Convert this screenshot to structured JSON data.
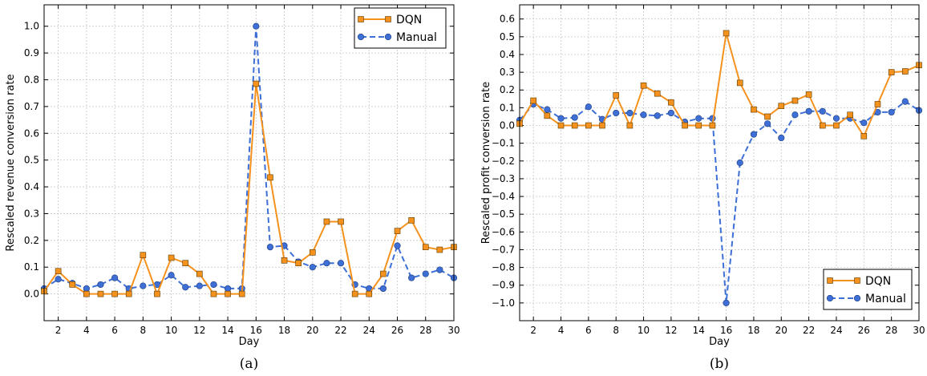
{
  "chart_data": [
    {
      "type": "line",
      "caption": "(a)",
      "xlabel": "Day",
      "ylabel": "Rescaled revenue conversion rate",
      "xlim": [
        1,
        30
      ],
      "ylim": [
        -0.1,
        1.08
      ],
      "xticks": [
        2,
        4,
        6,
        8,
        10,
        12,
        14,
        16,
        18,
        20,
        22,
        24,
        26,
        28,
        30
      ],
      "yticks": [
        0.0,
        0.1,
        0.2,
        0.3,
        0.4,
        0.5,
        0.6,
        0.7,
        0.8,
        0.9,
        1.0
      ],
      "ytick_labels": [
        "0.0",
        "0.1",
        "0.2",
        "0.3",
        "0.4",
        "0.5",
        "0.6",
        "0.7",
        "0.8",
        "0.9",
        "1.0"
      ],
      "grid": true,
      "legend_position": "top-right",
      "x": [
        1,
        2,
        3,
        4,
        5,
        6,
        7,
        8,
        9,
        10,
        11,
        12,
        13,
        14,
        15,
        16,
        17,
        18,
        19,
        20,
        21,
        22,
        23,
        24,
        25,
        26,
        27,
        28,
        29,
        30
      ],
      "series": [
        {
          "name": "DQN",
          "color": "#f5921e",
          "marker": "square",
          "line": "solid",
          "values": [
            0.01,
            0.085,
            0.035,
            0.0,
            0.0,
            0.0,
            0.0,
            0.145,
            0.0,
            0.135,
            0.115,
            0.075,
            0.0,
            0.0,
            0.0,
            0.785,
            0.435,
            0.125,
            0.115,
            0.155,
            0.27,
            0.27,
            0.0,
            0.0,
            0.075,
            0.235,
            0.275,
            0.175,
            0.165,
            0.175
          ]
        },
        {
          "name": "Manual",
          "color": "#3d6fd6",
          "marker": "circle",
          "line": "dashed",
          "values": [
            0.02,
            0.055,
            0.04,
            0.02,
            0.035,
            0.06,
            0.02,
            0.03,
            0.035,
            0.07,
            0.025,
            0.03,
            0.035,
            0.02,
            0.02,
            1.0,
            0.175,
            0.18,
            0.12,
            0.1,
            0.115,
            0.115,
            0.035,
            0.02,
            0.02,
            0.18,
            0.06,
            0.075,
            0.09,
            0.06
          ]
        }
      ]
    },
    {
      "type": "line",
      "caption": "(b)",
      "xlabel": "Day",
      "ylabel": "Rescaled profit conversion rate",
      "xlim": [
        1,
        30
      ],
      "ylim": [
        -1.1,
        0.68
      ],
      "xticks": [
        2,
        4,
        6,
        8,
        10,
        12,
        14,
        16,
        18,
        20,
        22,
        24,
        26,
        28,
        30
      ],
      "yticks": [
        -1.0,
        -0.9,
        -0.8,
        -0.7,
        -0.6,
        -0.5,
        -0.4,
        -0.3,
        -0.2,
        -0.1,
        0.0,
        0.1,
        0.2,
        0.3,
        0.4,
        0.5,
        0.6
      ],
      "ytick_labels": [
        "−1.0",
        "−0.9",
        "−0.8",
        "−0.7",
        "−0.6",
        "−0.5",
        "−0.4",
        "−0.3",
        "−0.2",
        "−0.1",
        "0.0",
        "0.1",
        "0.2",
        "0.3",
        "0.4",
        "0.5",
        "0.6"
      ],
      "grid": true,
      "legend_position": "bottom-right",
      "x": [
        1,
        2,
        3,
        4,
        5,
        6,
        7,
        8,
        9,
        10,
        11,
        12,
        13,
        14,
        15,
        16,
        17,
        18,
        19,
        20,
        21,
        22,
        23,
        24,
        25,
        26,
        27,
        28,
        29,
        30
      ],
      "series": [
        {
          "name": "DQN",
          "color": "#f5921e",
          "marker": "square",
          "line": "solid",
          "values": [
            0.01,
            0.14,
            0.055,
            0.0,
            0.0,
            0.0,
            0.0,
            0.17,
            0.0,
            0.225,
            0.18,
            0.13,
            0.0,
            0.0,
            0.0,
            0.52,
            0.24,
            0.09,
            0.05,
            0.11,
            0.14,
            0.175,
            0.0,
            0.0,
            0.06,
            -0.06,
            0.12,
            0.3,
            0.305,
            0.34
          ]
        },
        {
          "name": "Manual",
          "color": "#3d6fd6",
          "marker": "circle",
          "line": "dashed",
          "values": [
            0.03,
            0.12,
            0.09,
            0.04,
            0.045,
            0.105,
            0.035,
            0.07,
            0.07,
            0.06,
            0.055,
            0.07,
            0.02,
            0.04,
            0.04,
            -1.0,
            -0.21,
            -0.05,
            0.01,
            -0.07,
            0.06,
            0.08,
            0.08,
            0.04,
            0.04,
            0.015,
            0.075,
            0.075,
            0.135,
            0.085
          ]
        }
      ]
    }
  ]
}
